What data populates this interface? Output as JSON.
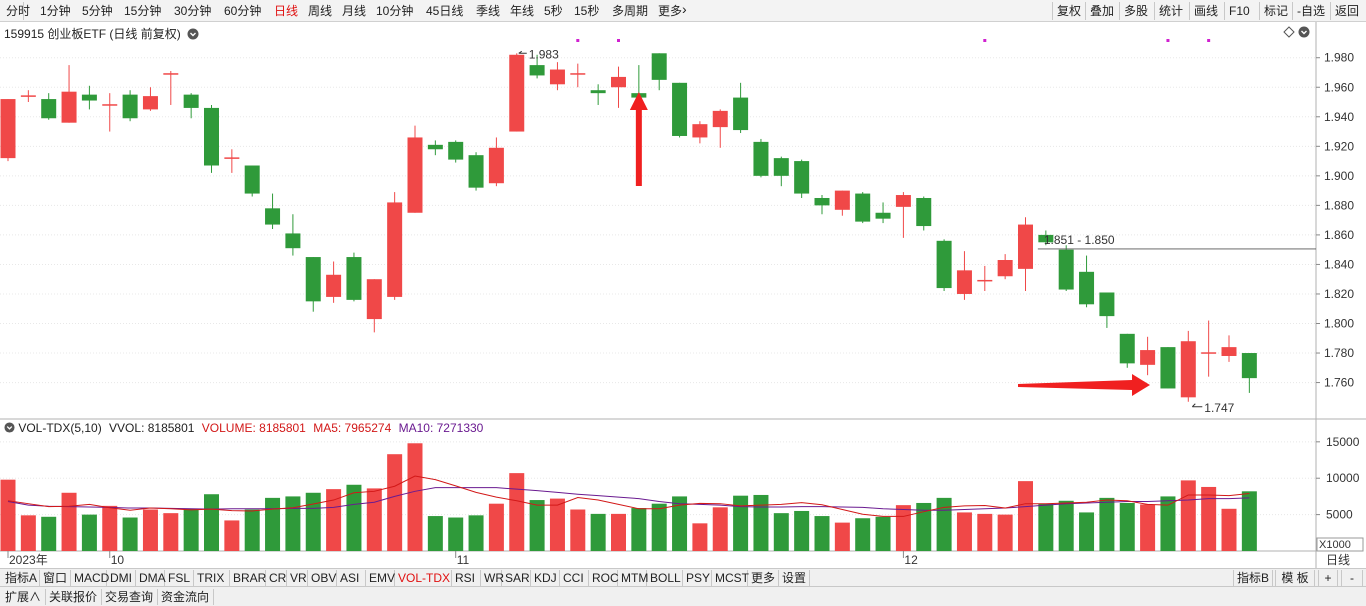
{
  "toolbar": {
    "left_items": [
      "分时",
      "1分钟",
      "5分钟",
      "15分钟",
      "30分钟",
      "60分钟",
      "日线",
      "周线",
      "月线",
      "10分钟",
      "45日线",
      "季线",
      "年线",
      "5秒",
      "15秒",
      "多周期",
      "更多"
    ],
    "active": "日线",
    "right_items": [
      "复权",
      "叠加",
      "多股",
      "统计",
      "画线",
      "F10",
      "标记",
      "-自选",
      "返回"
    ]
  },
  "chart": {
    "title": "159915 创业板ETF (日线 前复权)",
    "price_axis": [
      "1.980",
      "1.960",
      "1.940",
      "1.920",
      "1.900",
      "1.880",
      "1.860",
      "1.840",
      "1.820",
      "1.800",
      "1.780",
      "1.760"
    ],
    "high_label": "1.983",
    "low_label": "1.747",
    "hline_label": "1.851 - 1.850",
    "hline_value": 1.8505
  },
  "volume": {
    "indicator": "VOL-TDX(5,10)",
    "vvol_label": "VVOL: 8185801",
    "volume_label": "VOLUME: 8185801",
    "ma5_label": "MA5: 7965274",
    "ma10_label": "MA10: 7271330",
    "axis": [
      "15000",
      "10000",
      "5000"
    ],
    "unit": "X1000"
  },
  "date_axis": {
    "labels": [
      "2023年",
      "10",
      "11",
      "12"
    ],
    "right_label": "日线"
  },
  "indicator_tabs": [
    "指标A",
    "窗口",
    "MACD",
    "DMI",
    "DMA",
    "FSL",
    "TRIX",
    "BRAR",
    "CR",
    "VR",
    "OBV",
    "ASI",
    "EMV",
    "VOL-TDX",
    "RSI",
    "WR",
    "SAR",
    "KDJ",
    "CCI",
    "ROC",
    "MTM",
    "BOLL",
    "PSY",
    "MCST",
    "更多",
    "设置"
  ],
  "active_indicator": "VOL-TDX",
  "right_tabs": [
    "指标B",
    "模 板",
    "+",
    "-"
  ],
  "bottom_tabs": [
    "扩展∧",
    "关联报价",
    "交易查询",
    "资金流向"
  ],
  "colors": {
    "up": "#f04848",
    "down": "#2f9a3a",
    "ma5": "#d21818",
    "ma10": "#6a1a90",
    "arrow": "#f02020",
    "marker": "#d020d0"
  },
  "chart_data": {
    "type": "candlestick",
    "title": "159915 创业板ETF (日线 前复权)",
    "candles": [
      {
        "o": 1.912,
        "c": 1.952,
        "h": 1.952,
        "l": 1.91,
        "v": 9800
      },
      {
        "o": 1.954,
        "c": 1.954,
        "h": 1.958,
        "l": 1.95,
        "v": 4900
      },
      {
        "o": 1.952,
        "c": 1.939,
        "h": 1.956,
        "l": 1.938,
        "v": 4700
      },
      {
        "o": 1.936,
        "c": 1.957,
        "h": 1.975,
        "l": 1.936,
        "v": 8000
      },
      {
        "o": 1.955,
        "c": 1.951,
        "h": 1.961,
        "l": 1.945,
        "v": 5000
      },
      {
        "o": 1.948,
        "c": 1.948,
        "h": 1.956,
        "l": 1.93,
        "v": 6200
      },
      {
        "o": 1.955,
        "c": 1.939,
        "h": 1.958,
        "l": 1.937,
        "v": 4600
      },
      {
        "o": 1.945,
        "c": 1.954,
        "h": 1.96,
        "l": 1.944,
        "v": 5700
      },
      {
        "o": 1.969,
        "c": 1.969,
        "h": 1.971,
        "l": 1.948,
        "v": 5200
      },
      {
        "o": 1.955,
        "c": 1.946,
        "h": 1.956,
        "l": 1.939,
        "v": 5800
      },
      {
        "o": 1.946,
        "c": 1.907,
        "h": 1.948,
        "l": 1.902,
        "v": 7800
      },
      {
        "o": 1.912,
        "c": 1.912,
        "h": 1.918,
        "l": 1.902,
        "v": 4200
      },
      {
        "o": 1.907,
        "c": 1.888,
        "h": 1.907,
        "l": 1.886,
        "v": 5700
      },
      {
        "o": 1.878,
        "c": 1.867,
        "h": 1.888,
        "l": 1.864,
        "v": 7300
      },
      {
        "o": 1.861,
        "c": 1.851,
        "h": 1.874,
        "l": 1.846,
        "v": 7500
      },
      {
        "o": 1.845,
        "c": 1.815,
        "h": 1.845,
        "l": 1.808,
        "v": 8000
      },
      {
        "o": 1.818,
        "c": 1.833,
        "h": 1.842,
        "l": 1.814,
        "v": 8500
      },
      {
        "o": 1.845,
        "c": 1.816,
        "h": 1.848,
        "l": 1.815,
        "v": 9100
      },
      {
        "o": 1.803,
        "c": 1.83,
        "h": 1.83,
        "l": 1.794,
        "v": 8600
      },
      {
        "o": 1.818,
        "c": 1.882,
        "h": 1.889,
        "l": 1.816,
        "v": 13300
      },
      {
        "o": 1.875,
        "c": 1.926,
        "h": 1.934,
        "l": 1.875,
        "v": 14800
      },
      {
        "o": 1.921,
        "c": 1.918,
        "h": 1.924,
        "l": 1.914,
        "v": 4800
      },
      {
        "o": 1.923,
        "c": 1.911,
        "h": 1.924,
        "l": 1.909,
        "v": 4600
      },
      {
        "o": 1.914,
        "c": 1.892,
        "h": 1.916,
        "l": 1.89,
        "v": 4900
      },
      {
        "o": 1.895,
        "c": 1.919,
        "h": 1.926,
        "l": 1.893,
        "v": 6500
      },
      {
        "o": 1.93,
        "c": 1.982,
        "h": 1.983,
        "l": 1.93,
        "v": 10700
      },
      {
        "o": 1.975,
        "c": 1.968,
        "h": 1.982,
        "l": 1.966,
        "v": 7000
      },
      {
        "o": 1.962,
        "c": 1.972,
        "h": 1.977,
        "l": 1.958,
        "v": 7200
      },
      {
        "o": 1.969,
        "c": 1.969,
        "h": 1.976,
        "l": 1.96,
        "v": 5700
      },
      {
        "o": 1.958,
        "c": 1.956,
        "h": 1.962,
        "l": 1.948,
        "v": 5100
      },
      {
        "o": 1.96,
        "c": 1.967,
        "h": 1.974,
        "l": 1.946,
        "v": 5100
      },
      {
        "o": 1.956,
        "c": 1.953,
        "h": 1.975,
        "l": 1.947,
        "v": 5900
      },
      {
        "o": 1.983,
        "c": 1.965,
        "h": 1.983,
        "l": 1.958,
        "v": 6500
      },
      {
        "o": 1.963,
        "c": 1.927,
        "h": 1.963,
        "l": 1.926,
        "v": 7500
      },
      {
        "o": 1.926,
        "c": 1.935,
        "h": 1.937,
        "l": 1.922,
        "v": 3800
      },
      {
        "o": 1.933,
        "c": 1.944,
        "h": 1.945,
        "l": 1.919,
        "v": 6000
      },
      {
        "o": 1.953,
        "c": 1.931,
        "h": 1.963,
        "l": 1.929,
        "v": 7600
      },
      {
        "o": 1.923,
        "c": 1.9,
        "h": 1.925,
        "l": 1.899,
        "v": 7700
      },
      {
        "o": 1.912,
        "c": 1.9,
        "h": 1.913,
        "l": 1.893,
        "v": 5200
      },
      {
        "o": 1.91,
        "c": 1.888,
        "h": 1.911,
        "l": 1.885,
        "v": 5500
      },
      {
        "o": 1.885,
        "c": 1.88,
        "h": 1.887,
        "l": 1.874,
        "v": 4800
      },
      {
        "o": 1.877,
        "c": 1.89,
        "h": 1.89,
        "l": 1.873,
        "v": 3900
      },
      {
        "o": 1.888,
        "c": 1.869,
        "h": 1.889,
        "l": 1.868,
        "v": 4500
      },
      {
        "o": 1.875,
        "c": 1.871,
        "h": 1.882,
        "l": 1.868,
        "v": 4700
      },
      {
        "o": 1.879,
        "c": 1.887,
        "h": 1.889,
        "l": 1.858,
        "v": 6300
      },
      {
        "o": 1.885,
        "c": 1.866,
        "h": 1.886,
        "l": 1.863,
        "v": 6600
      },
      {
        "o": 1.856,
        "c": 1.824,
        "h": 1.857,
        "l": 1.822,
        "v": 7300
      },
      {
        "o": 1.82,
        "c": 1.836,
        "h": 1.849,
        "l": 1.816,
        "v": 5300
      },
      {
        "o": 1.829,
        "c": 1.829,
        "h": 1.839,
        "l": 1.822,
        "v": 5100
      },
      {
        "o": 1.832,
        "c": 1.843,
        "h": 1.847,
        "l": 1.83,
        "v": 5000
      },
      {
        "o": 1.837,
        "c": 1.867,
        "h": 1.872,
        "l": 1.822,
        "v": 9600
      },
      {
        "o": 1.86,
        "c": 1.855,
        "h": 1.863,
        "l": 1.853,
        "v": 6500
      },
      {
        "o": 1.85,
        "c": 1.823,
        "h": 1.853,
        "l": 1.822,
        "v": 6900
      },
      {
        "o": 1.835,
        "c": 1.813,
        "h": 1.846,
        "l": 1.811,
        "v": 5300
      },
      {
        "o": 1.821,
        "c": 1.805,
        "h": 1.821,
        "l": 1.797,
        "v": 7300
      },
      {
        "o": 1.793,
        "c": 1.773,
        "h": 1.793,
        "l": 1.77,
        "v": 6600
      },
      {
        "o": 1.772,
        "c": 1.782,
        "h": 1.791,
        "l": 1.765,
        "v": 6400
      },
      {
        "o": 1.784,
        "c": 1.756,
        "h": 1.784,
        "l": 1.756,
        "v": 7500
      },
      {
        "o": 1.75,
        "c": 1.788,
        "h": 1.795,
        "l": 1.747,
        "v": 9700
      },
      {
        "o": 1.78,
        "c": 1.78,
        "h": 1.802,
        "l": 1.764,
        "v": 8800
      },
      {
        "o": 1.778,
        "c": 1.784,
        "h": 1.792,
        "l": 1.774,
        "v": 5800
      },
      {
        "o": 1.78,
        "c": 1.763,
        "h": 1.78,
        "l": 1.753,
        "v": 8200
      }
    ],
    "ylim": [
      1.736,
      1.992
    ],
    "vol_ylim": [
      0,
      15800
    ],
    "ma5": [
      6900,
      6500,
      6100,
      6150,
      6400,
      5950,
      5600,
      5900,
      5800,
      5650,
      5750,
      5550,
      5500,
      5750,
      5950,
      6450,
      7000,
      8000,
      8200,
      8900,
      10300,
      9800,
      8950,
      8050,
      7400,
      6900,
      6300,
      6300,
      7350,
      7000,
      6400,
      5800,
      5800,
      6300,
      6550,
      6500,
      6200,
      6300,
      6400,
      6650,
      6350,
      5700,
      5050,
      4750,
      4750,
      5400,
      6000,
      6200,
      6250,
      5900,
      6500,
      6500,
      6600,
      6700,
      7000,
      6900,
      6400,
      6300,
      7700,
      7700,
      7600,
      7900
    ],
    "ma10": [
      6800,
      6300,
      6150,
      6100,
      6050,
      6000,
      5900,
      5900,
      5850,
      5800,
      5750,
      5800,
      5800,
      5800,
      5850,
      5850,
      6000,
      6400,
      6700,
      7500,
      8200,
      8700,
      8700,
      8700,
      8700,
      8500,
      8300,
      8050,
      7800,
      7600,
      7400,
      7200,
      6800,
      6500,
      6400,
      6300,
      6100,
      6050,
      6050,
      6100,
      6100,
      6050,
      6000,
      5800,
      5700,
      5600,
      5600,
      5700,
      5800,
      5900,
      6100,
      6300,
      6500,
      6600,
      6700,
      6800,
      6800,
      6900,
      7000,
      7200,
      7200,
      7300
    ]
  }
}
